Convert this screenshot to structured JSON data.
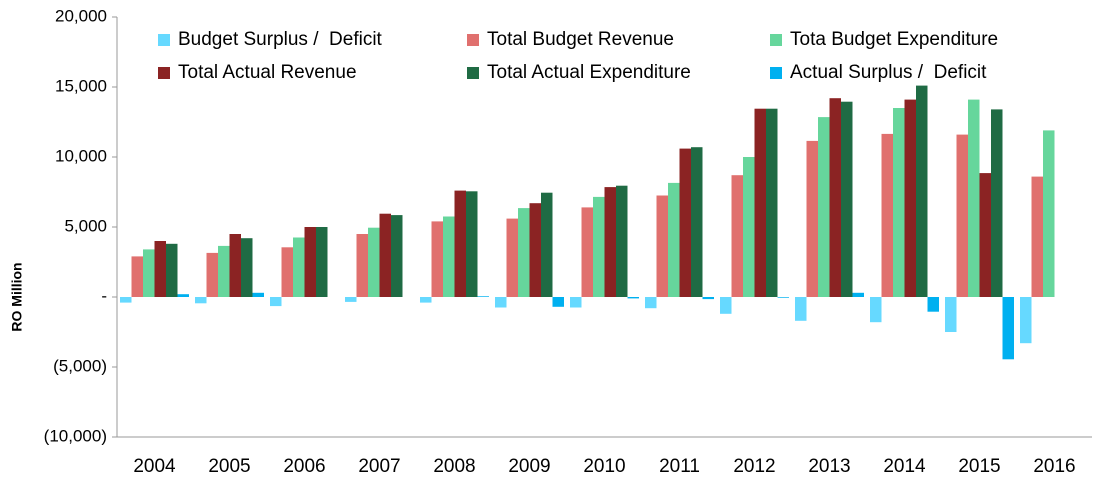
{
  "chart_data": {
    "type": "bar",
    "y_label": "RO Million",
    "categories": [
      "2004",
      "2005",
      "2006",
      "2007",
      "2008",
      "2009",
      "2010",
      "2011",
      "2012",
      "2013",
      "2014",
      "2015",
      "2016"
    ],
    "series": [
      {
        "name": "Budget Surplus /  Deficit",
        "color": "#66d9ff",
        "values": [
          -400,
          -450,
          -650,
          -350,
          -400,
          -750,
          -750,
          -800,
          -1200,
          -1700,
          -1800,
          -2500,
          -3300
        ]
      },
      {
        "name": "Total Budget Revenue",
        "color": "#e0706e",
        "values": [
          2900,
          3150,
          3550,
          4500,
          5400,
          5600,
          6400,
          7250,
          8700,
          11150,
          11650,
          11600,
          8600
        ]
      },
      {
        "name": "Tota Budget Expenditure",
        "color": "#66d69c",
        "values": [
          3400,
          3650,
          4250,
          4950,
          5750,
          6350,
          7150,
          8150,
          10000,
          12850,
          13500,
          14100,
          11900
        ]
      },
      {
        "name": "Total Actual Revenue",
        "color": "#8b2323",
        "values": [
          4000,
          4500,
          5000,
          5950,
          7600,
          6700,
          7850,
          10600,
          13450,
          14200,
          14100,
          8850,
          null
        ]
      },
      {
        "name": "Total Actual Expenditure",
        "color": "#1f6b44",
        "values": [
          3800,
          4200,
          5000,
          5850,
          7550,
          7450,
          7950,
          10700,
          13450,
          13950,
          15100,
          13400,
          null
        ]
      },
      {
        "name": "Actual Surplus /  Deficit",
        "color": "#00b0f0",
        "values": [
          200,
          300,
          0,
          0,
          50,
          -700,
          -100,
          -150,
          -50,
          300,
          -1050,
          -4450,
          null
        ]
      }
    ],
    "ylim": [
      -10000,
      20000
    ],
    "yticks": [
      {
        "value": -10000,
        "label": "(10,000)"
      },
      {
        "value": -5000,
        "label": "(5,000)"
      },
      {
        "value": 0,
        "label": "-"
      },
      {
        "value": 5000,
        "label": "5,000"
      },
      {
        "value": 10000,
        "label": "10,000"
      },
      {
        "value": 15000,
        "label": "15,000"
      },
      {
        "value": 20000,
        "label": "20,000"
      }
    ],
    "grid": false
  }
}
